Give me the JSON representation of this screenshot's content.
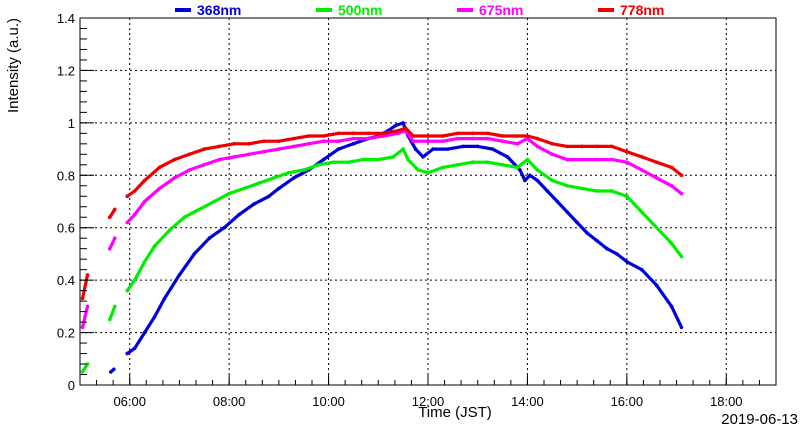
{
  "chart_data": {
    "type": "scatter",
    "title": "",
    "xlabel": "Time (JST)",
    "ylabel": "Intensity (a.u.)",
    "date_label": "2019-06-13",
    "xlim": [
      5.0,
      19.0
    ],
    "ylim": [
      0,
      1.4
    ],
    "grid": true,
    "legend_position": "top",
    "x_ticks": [
      {
        "value": 6,
        "label": "06:00"
      },
      {
        "value": 8,
        "label": "08:00"
      },
      {
        "value": 10,
        "label": "10:00"
      },
      {
        "value": 12,
        "label": "12:00"
      },
      {
        "value": 14,
        "label": "14:00"
      },
      {
        "value": 16,
        "label": "16:00"
      },
      {
        "value": 18,
        "label": "18:00"
      }
    ],
    "y_ticks": [
      {
        "value": 0,
        "label": "0"
      },
      {
        "value": 0.2,
        "label": "0.2"
      },
      {
        "value": 0.4,
        "label": "0.4"
      },
      {
        "value": 0.6,
        "label": "0.6"
      },
      {
        "value": 0.8,
        "label": "0.8"
      },
      {
        "value": 1.0,
        "label": "1"
      },
      {
        "value": 1.2,
        "label": "1.2"
      },
      {
        "value": 1.4,
        "label": "1.4"
      }
    ],
    "series": [
      {
        "name": "368nm",
        "color": "#0000dd",
        "segments": [
          [
            [
              5.62,
              0.05
            ],
            [
              5.68,
              0.06
            ]
          ],
          [
            [
              5.95,
              0.12
            ],
            [
              6.1,
              0.14
            ],
            [
              6.3,
              0.2
            ],
            [
              6.5,
              0.26
            ],
            [
              6.7,
              0.33
            ],
            [
              7.0,
              0.42
            ],
            [
              7.3,
              0.5
            ],
            [
              7.6,
              0.56
            ],
            [
              7.9,
              0.6
            ],
            [
              8.2,
              0.65
            ],
            [
              8.5,
              0.69
            ],
            [
              8.8,
              0.72
            ],
            [
              9.0,
              0.75
            ],
            [
              9.3,
              0.79
            ],
            [
              9.6,
              0.82
            ],
            [
              9.9,
              0.86
            ],
            [
              10.2,
              0.9
            ],
            [
              10.5,
              0.92
            ],
            [
              10.8,
              0.94
            ],
            [
              11.0,
              0.95
            ],
            [
              11.2,
              0.97
            ],
            [
              11.35,
              0.99
            ],
            [
              11.5,
              1.0
            ],
            [
              11.6,
              0.95
            ],
            [
              11.75,
              0.9
            ],
            [
              11.9,
              0.87
            ],
            [
              12.1,
              0.9
            ],
            [
              12.4,
              0.9
            ],
            [
              12.7,
              0.91
            ],
            [
              13.0,
              0.91
            ],
            [
              13.3,
              0.9
            ],
            [
              13.6,
              0.87
            ],
            [
              13.85,
              0.82
            ],
            [
              13.95,
              0.78
            ],
            [
              14.05,
              0.8
            ],
            [
              14.2,
              0.78
            ],
            [
              14.4,
              0.74
            ],
            [
              14.6,
              0.7
            ],
            [
              14.8,
              0.66
            ],
            [
              15.0,
              0.62
            ],
            [
              15.2,
              0.58
            ],
            [
              15.4,
              0.55
            ],
            [
              15.6,
              0.52
            ],
            [
              15.8,
              0.5
            ],
            [
              16.0,
              0.47
            ],
            [
              16.3,
              0.44
            ],
            [
              16.6,
              0.38
            ],
            [
              16.9,
              0.3
            ],
            [
              17.1,
              0.22
            ]
          ]
        ]
      },
      {
        "name": "500nm",
        "color": "#00ee00",
        "segments": [
          [
            [
              5.05,
              0.05
            ],
            [
              5.15,
              0.08
            ]
          ],
          [
            [
              5.6,
              0.25
            ],
            [
              5.7,
              0.3
            ]
          ],
          [
            [
              5.95,
              0.36
            ],
            [
              6.1,
              0.4
            ],
            [
              6.3,
              0.47
            ],
            [
              6.5,
              0.53
            ],
            [
              6.8,
              0.59
            ],
            [
              7.1,
              0.64
            ],
            [
              7.4,
              0.67
            ],
            [
              7.7,
              0.7
            ],
            [
              8.0,
              0.73
            ],
            [
              8.3,
              0.75
            ],
            [
              8.6,
              0.77
            ],
            [
              8.9,
              0.79
            ],
            [
              9.2,
              0.81
            ],
            [
              9.5,
              0.82
            ],
            [
              9.8,
              0.84
            ],
            [
              10.1,
              0.85
            ],
            [
              10.4,
              0.85
            ],
            [
              10.7,
              0.86
            ],
            [
              11.0,
              0.86
            ],
            [
              11.3,
              0.87
            ],
            [
              11.5,
              0.9
            ],
            [
              11.6,
              0.86
            ],
            [
              11.8,
              0.82
            ],
            [
              12.0,
              0.81
            ],
            [
              12.3,
              0.83
            ],
            [
              12.6,
              0.84
            ],
            [
              12.9,
              0.85
            ],
            [
              13.2,
              0.85
            ],
            [
              13.5,
              0.84
            ],
            [
              13.8,
              0.83
            ],
            [
              14.0,
              0.86
            ],
            [
              14.2,
              0.82
            ],
            [
              14.5,
              0.78
            ],
            [
              14.8,
              0.76
            ],
            [
              15.1,
              0.75
            ],
            [
              15.4,
              0.74
            ],
            [
              15.7,
              0.74
            ],
            [
              16.0,
              0.72
            ],
            [
              16.3,
              0.66
            ],
            [
              16.6,
              0.6
            ],
            [
              16.9,
              0.54
            ],
            [
              17.1,
              0.49
            ]
          ]
        ]
      },
      {
        "name": "675nm",
        "color": "#ff00ff",
        "segments": [
          [
            [
              5.05,
              0.22
            ],
            [
              5.15,
              0.3
            ]
          ],
          [
            [
              5.6,
              0.52
            ],
            [
              5.7,
              0.56
            ]
          ],
          [
            [
              5.95,
              0.62
            ],
            [
              6.1,
              0.65
            ],
            [
              6.3,
              0.7
            ],
            [
              6.6,
              0.75
            ],
            [
              6.9,
              0.79
            ],
            [
              7.2,
              0.82
            ],
            [
              7.5,
              0.84
            ],
            [
              7.8,
              0.86
            ],
            [
              8.1,
              0.87
            ],
            [
              8.4,
              0.88
            ],
            [
              8.7,
              0.89
            ],
            [
              9.0,
              0.9
            ],
            [
              9.3,
              0.91
            ],
            [
              9.6,
              0.92
            ],
            [
              9.9,
              0.93
            ],
            [
              10.2,
              0.93
            ],
            [
              10.5,
              0.94
            ],
            [
              10.8,
              0.94
            ],
            [
              11.1,
              0.95
            ],
            [
              11.4,
              0.96
            ],
            [
              11.55,
              0.97
            ],
            [
              11.7,
              0.93
            ],
            [
              12.0,
              0.93
            ],
            [
              12.3,
              0.93
            ],
            [
              12.6,
              0.94
            ],
            [
              12.9,
              0.94
            ],
            [
              13.2,
              0.94
            ],
            [
              13.5,
              0.93
            ],
            [
              13.8,
              0.92
            ],
            [
              14.0,
              0.94
            ],
            [
              14.2,
              0.91
            ],
            [
              14.5,
              0.88
            ],
            [
              14.8,
              0.86
            ],
            [
              15.1,
              0.86
            ],
            [
              15.4,
              0.86
            ],
            [
              15.7,
              0.86
            ],
            [
              16.0,
              0.85
            ],
            [
              16.3,
              0.82
            ],
            [
              16.6,
              0.79
            ],
            [
              16.9,
              0.76
            ],
            [
              17.1,
              0.73
            ]
          ]
        ]
      },
      {
        "name": "778nm",
        "color": "#ee0000",
        "segments": [
          [
            [
              5.05,
              0.33
            ],
            [
              5.15,
              0.42
            ]
          ],
          [
            [
              5.6,
              0.64
            ],
            [
              5.7,
              0.67
            ]
          ],
          [
            [
              5.95,
              0.72
            ],
            [
              6.1,
              0.74
            ],
            [
              6.3,
              0.78
            ],
            [
              6.6,
              0.83
            ],
            [
              6.9,
              0.86
            ],
            [
              7.2,
              0.88
            ],
            [
              7.5,
              0.9
            ],
            [
              7.8,
              0.91
            ],
            [
              8.1,
              0.92
            ],
            [
              8.4,
              0.92
            ],
            [
              8.7,
              0.93
            ],
            [
              9.0,
              0.93
            ],
            [
              9.3,
              0.94
            ],
            [
              9.6,
              0.95
            ],
            [
              9.9,
              0.95
            ],
            [
              10.2,
              0.96
            ],
            [
              10.5,
              0.96
            ],
            [
              10.8,
              0.96
            ],
            [
              11.1,
              0.96
            ],
            [
              11.4,
              0.97
            ],
            [
              11.55,
              0.98
            ],
            [
              11.7,
              0.95
            ],
            [
              12.0,
              0.95
            ],
            [
              12.3,
              0.95
            ],
            [
              12.6,
              0.96
            ],
            [
              12.9,
              0.96
            ],
            [
              13.2,
              0.96
            ],
            [
              13.5,
              0.95
            ],
            [
              13.8,
              0.95
            ],
            [
              14.0,
              0.95
            ],
            [
              14.2,
              0.94
            ],
            [
              14.5,
              0.92
            ],
            [
              14.8,
              0.91
            ],
            [
              15.1,
              0.91
            ],
            [
              15.4,
              0.91
            ],
            [
              15.7,
              0.91
            ],
            [
              16.0,
              0.89
            ],
            [
              16.3,
              0.87
            ],
            [
              16.6,
              0.85
            ],
            [
              16.9,
              0.83
            ],
            [
              17.1,
              0.8
            ]
          ]
        ]
      }
    ]
  }
}
